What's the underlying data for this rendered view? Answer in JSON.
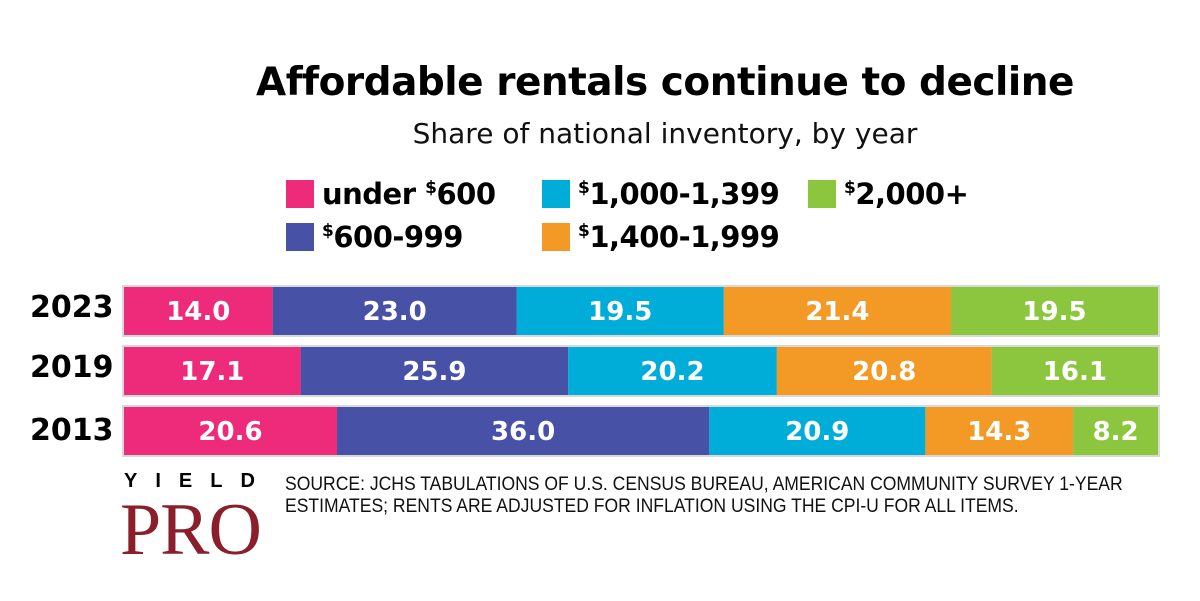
{
  "chart_data": {
    "type": "bar",
    "orientation": "horizontal",
    "stacked": true,
    "title": "Affordable rentals continue to decline",
    "subtitle": "Share of national inventory, by year",
    "categories": [
      "2023",
      "2019",
      "2013"
    ],
    "series": [
      {
        "name": "under $600",
        "color": "#ee2a7b",
        "values": [
          14.0,
          17.1,
          20.6
        ],
        "labels": [
          "14.0",
          "17.1",
          "20.6"
        ]
      },
      {
        "name": "$600-999",
        "color": "#4751a6",
        "values": [
          23.0,
          25.9,
          36.0
        ],
        "labels": [
          "23.0",
          "25.9",
          "36.0"
        ]
      },
      {
        "name": "$1,000-1,399",
        "color": "#00add8",
        "values": [
          19.5,
          20.2,
          20.9
        ],
        "labels": [
          "19.5",
          "20.2",
          "20.9"
        ]
      },
      {
        "name": "$1,400-1,999",
        "color": "#f39a26",
        "values": [
          21.4,
          20.8,
          14.3
        ],
        "labels": [
          "21.4",
          "20.8",
          "14.3"
        ]
      },
      {
        "name": "$2,000+",
        "color": "#8cc63f",
        "values": [
          19.5,
          16.1,
          8.2
        ],
        "labels": [
          "19.5",
          "16.1",
          "8.2"
        ]
      }
    ],
    "xlim": [
      0,
      100
    ],
    "grid": false,
    "legend_position": "top"
  },
  "legend": [
    {
      "prefix": "under ",
      "sup": "$",
      "rest": "600"
    },
    {
      "prefix": "",
      "sup": "$",
      "rest": "600-999"
    },
    {
      "prefix": "",
      "sup": "$",
      "rest": "1,000-1,399"
    },
    {
      "prefix": "",
      "sup": "$",
      "rest": "1,400-1,999"
    },
    {
      "prefix": "",
      "sup": "$",
      "rest": "2,000+"
    }
  ],
  "source": "SOURCE: JCHS TABULATIONS OF U.S. CENSUS BUREAU, AMERICAN COMMUNITY SURVEY 1-YEAR ESTIMATES; RENTS ARE ADJUSTED FOR INFLATION USING THE CPI-U FOR ALL ITEMS.",
  "logo": {
    "top": "YIELD",
    "bottom": "PRO"
  }
}
